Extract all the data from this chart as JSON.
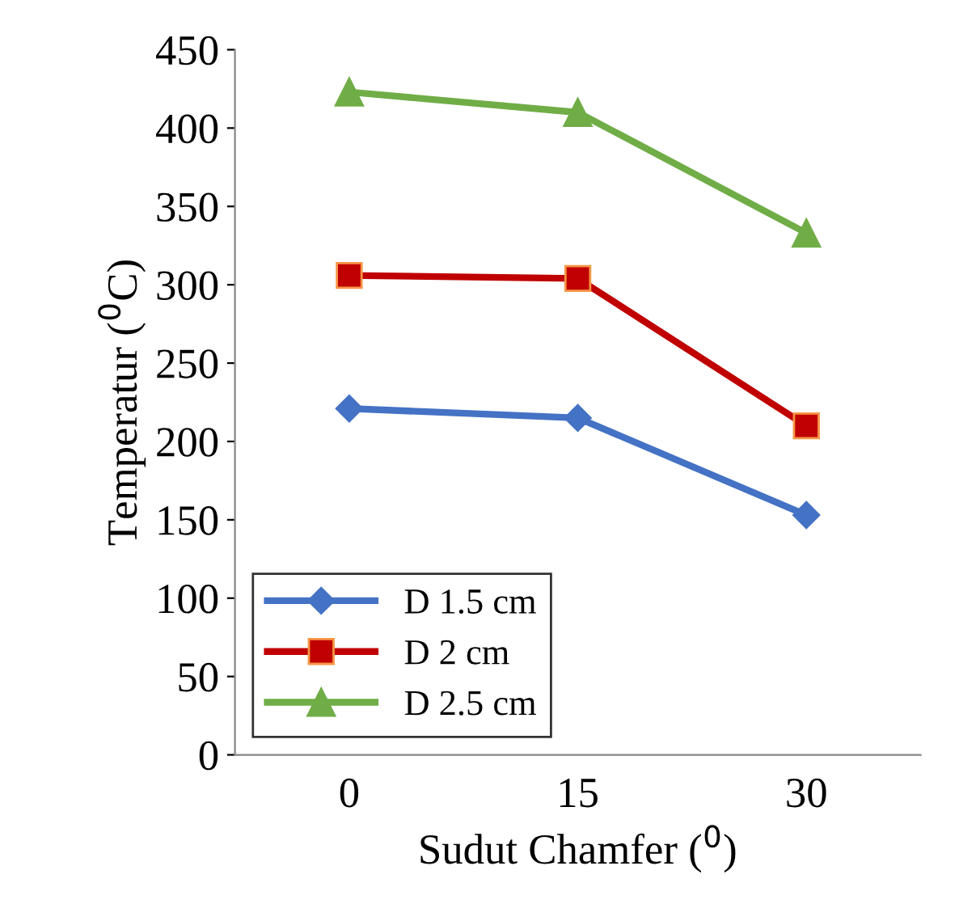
{
  "chart_data": {
    "type": "line",
    "xlabel": "Sudut Chamfer ($^{0}$)",
    "ylabel": "Temperatur ($^{0}$C)",
    "categories": [
      "0",
      "15",
      "30"
    ],
    "series": [
      {
        "name": "D 1.5 cm",
        "color": "#4472c4",
        "marker": "diamond",
        "values": [
          221,
          215,
          153
        ]
      },
      {
        "name": "D 2 cm",
        "color": "#c00000",
        "marker": "square",
        "values": [
          306,
          304,
          210
        ]
      },
      {
        "name": "D 2.5 cm",
        "color": "#70ad47",
        "marker": "triangle",
        "values": [
          423,
          410,
          333
        ]
      }
    ],
    "ylim": [
      0,
      450
    ],
    "yticks": [
      0,
      50,
      100,
      150,
      200,
      250,
      300,
      350,
      400,
      450
    ],
    "grid": false,
    "legend": "bottom left",
    "line_style": "solid"
  }
}
